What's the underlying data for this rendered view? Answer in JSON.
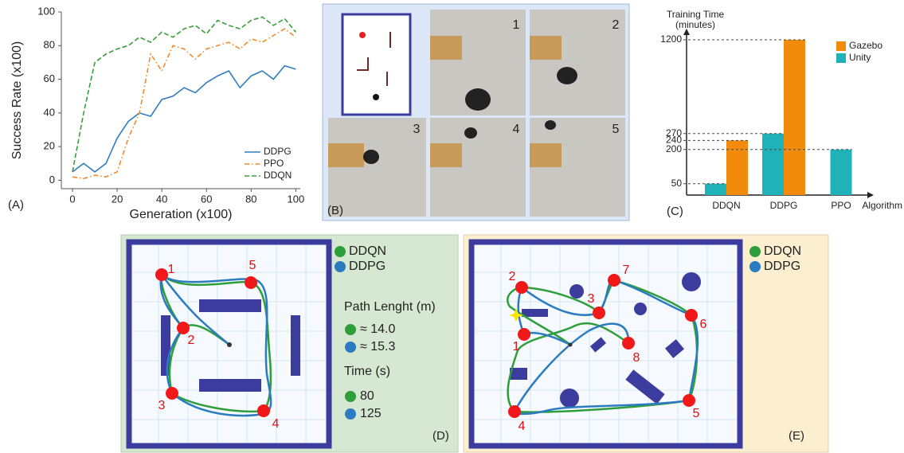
{
  "chart_data": [
    {
      "type": "line",
      "xlabel": "Generation (x100)",
      "ylabel": "Success Rate (x100)",
      "x": [
        0,
        5,
        10,
        15,
        20,
        25,
        30,
        35,
        40,
        45,
        50,
        55,
        60,
        65,
        70,
        75,
        80,
        85,
        90,
        95,
        100
      ],
      "series": [
        {
          "name": "DDPG",
          "color": "#2f7cc1",
          "linestyle": "solid",
          "values": [
            5,
            10,
            5,
            10,
            25,
            35,
            40,
            38,
            48,
            50,
            55,
            52,
            58,
            62,
            65,
            55,
            62,
            65,
            60,
            68,
            66
          ]
        },
        {
          "name": "PPO",
          "color": "#f28a2a",
          "linestyle": "dashdot",
          "values": [
            2,
            1,
            3,
            2,
            5,
            25,
            40,
            75,
            65,
            80,
            78,
            72,
            78,
            80,
            82,
            78,
            84,
            82,
            86,
            90,
            85
          ]
        },
        {
          "name": "DDQN",
          "color": "#3a9e3a",
          "linestyle": "dashed",
          "values": [
            5,
            40,
            70,
            75,
            78,
            80,
            85,
            82,
            88,
            85,
            90,
            92,
            87,
            95,
            92,
            90,
            95,
            97,
            92,
            96,
            88
          ]
        }
      ],
      "xlim": [
        -5,
        102
      ],
      "xticks": [
        0,
        20,
        40,
        60,
        80,
        100
      ],
      "ylim": [
        -5,
        100
      ],
      "yticks": [
        0,
        20,
        40,
        60,
        80,
        100
      ],
      "legend": "lower right"
    },
    {
      "type": "bar",
      "ylabel": [
        "Training Time",
        "(minutes)"
      ],
      "xlabel": "Algorithm",
      "categories": [
        "DDQN",
        "DDPG",
        "PPO"
      ],
      "series": [
        {
          "name": "Gazebo",
          "color": "#f28a0c",
          "values": [
            240,
            1200,
            null
          ]
        },
        {
          "name": "Unity",
          "color": "#1fb3b9",
          "values": [
            50,
            270,
            200
          ]
        }
      ],
      "ylim": [
        0,
        1200
      ],
      "yticks": [
        50,
        200,
        240,
        270,
        1200
      ],
      "scale_break": 300,
      "legend": "upper right"
    }
  ],
  "panel_labels": [
    "(A)",
    "(B)",
    "(C)",
    "(D)",
    "(E)"
  ],
  "photos": {
    "frames": [
      "1",
      "2",
      "3",
      "4",
      "5"
    ]
  },
  "map_d": {
    "waypoints": [
      "1",
      "2",
      "3",
      "4",
      "5"
    ],
    "legend": [
      {
        "name": "DDQN",
        "color": "#2e9e3a"
      },
      {
        "name": "DDPG",
        "color": "#2a7bbf"
      }
    ],
    "path_length_title": "Path Lenght (m)",
    "path_lengths": [
      "≈ 14.0",
      "≈ 15.3"
    ],
    "time_title": "Time (s)",
    "times": [
      80,
      125
    ]
  },
  "map_e": {
    "waypoints": [
      "1",
      "2",
      "3",
      "4",
      "5",
      "6",
      "7",
      "8"
    ],
    "legend": [
      {
        "name": "DDQN",
        "color": "#2e9e3a"
      },
      {
        "name": "DDPG",
        "color": "#2a7bbf"
      }
    ]
  }
}
